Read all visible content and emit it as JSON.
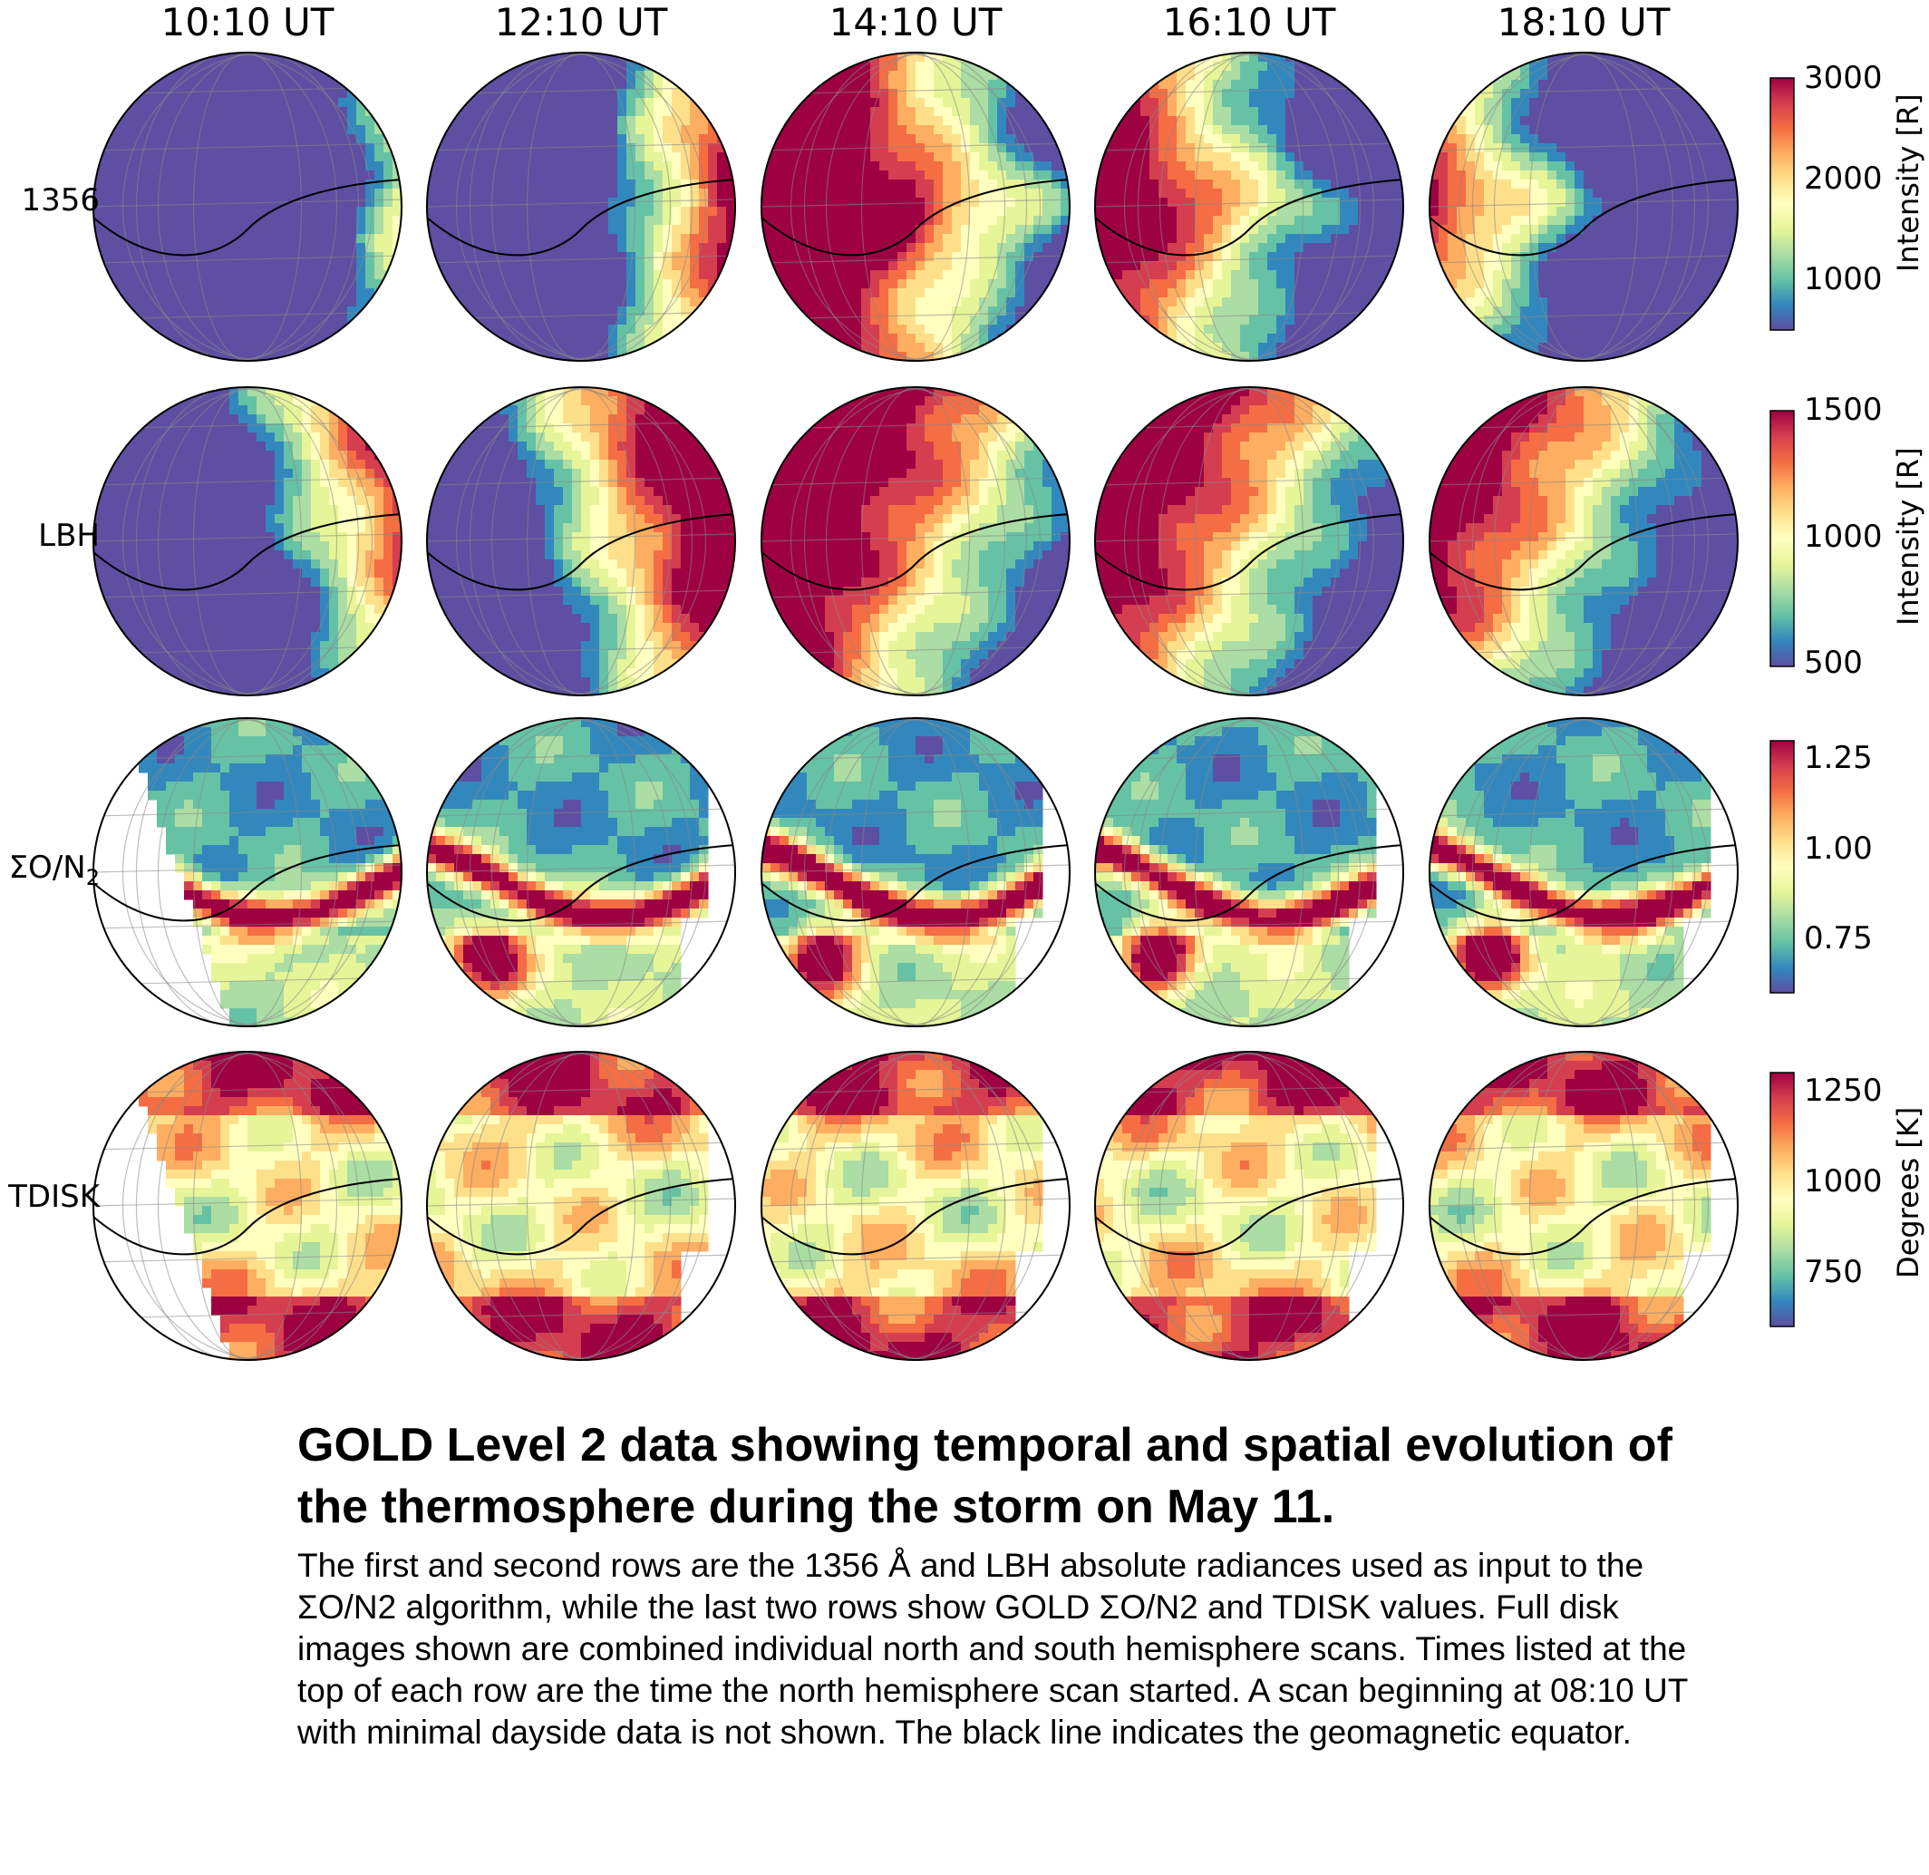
{
  "columns": [
    "10:10 UT",
    "12:10 UT",
    "14:10 UT",
    "16:10 UT",
    "18:10 UT"
  ],
  "rows": [
    {
      "label": "1356",
      "colorbar": {
        "ticks": [
          "3000",
          "2000",
          "1000"
        ],
        "label": "Intensity [R]"
      }
    },
    {
      "label": "LBH",
      "colorbar": {
        "ticks": [
          "1500",
          "1000",
          "500"
        ],
        "label": "Intensity [R]"
      }
    },
    {
      "label": "ΣO/N",
      "label_sub": "2",
      "colorbar": {
        "ticks": [
          "1.25",
          "1.00",
          "0.75"
        ],
        "label": ""
      }
    },
    {
      "label": "TDISK",
      "colorbar": {
        "ticks": [
          "1250",
          "1000",
          "750"
        ],
        "label": "Degrees [K]"
      }
    }
  ],
  "colormap": [
    "#5e4fa2",
    "#3288bd",
    "#66c2a5",
    "#abdda4",
    "#e6f598",
    "#ffffbf",
    "#fee08b",
    "#fdae61",
    "#f46d43",
    "#d53e4f",
    "#9e0142"
  ],
  "caption": {
    "title": "GOLD Level 2 data showing temporal and spatial evolution of the thermosphere during the storm on May 11.",
    "body": "The first and second rows are the 1356 Å and LBH absolute radiances used as input to the ΣO/N2 algorithm, while the last two rows show GOLD ΣO/N2 and TDISK values. Full disk images shown are combined individual north and south hemisphere scans. Times listed at the top of each row are the time the north hemisphere scan started. A scan beginning at 08:10 UT with minimal dayside data is not shown. The black line indicates the geomagnetic equator."
  }
}
